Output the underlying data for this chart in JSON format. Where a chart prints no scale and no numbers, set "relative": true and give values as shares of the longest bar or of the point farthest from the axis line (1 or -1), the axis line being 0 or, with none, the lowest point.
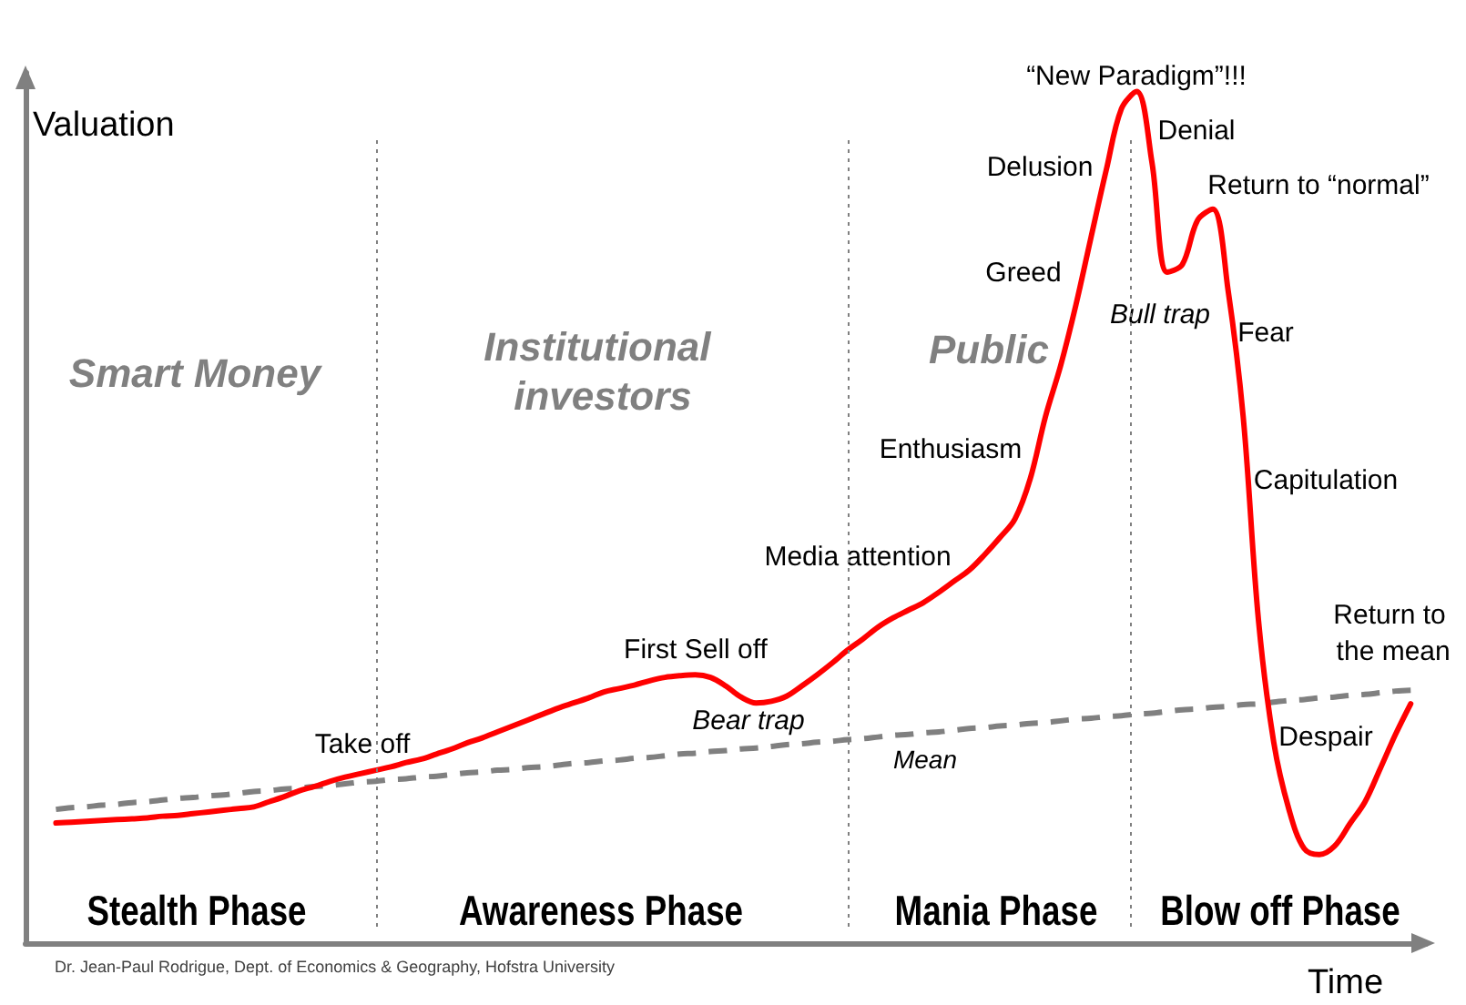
{
  "chart_data": {
    "type": "line",
    "relative": true,
    "xlabel": "Time",
    "ylabel": "Valuation",
    "marker": "none",
    "grid": false,
    "categories": [
      null,
      null,
      null,
      null,
      null,
      null,
      null,
      null,
      null,
      null,
      null,
      null,
      null,
      null,
      null,
      null,
      null,
      null,
      null,
      null,
      null,
      null,
      null,
      null,
      null,
      null,
      null,
      null,
      null,
      null,
      null,
      null,
      null,
      null,
      null,
      null,
      null,
      null,
      null,
      null,
      null,
      null,
      null,
      null,
      null,
      null,
      null,
      null,
      null,
      null,
      null,
      null,
      null,
      null,
      null,
      null,
      null,
      null,
      null,
      null,
      null,
      null,
      null,
      null,
      null,
      null,
      null,
      null,
      null,
      null,
      null,
      null,
      null,
      null,
      null,
      null,
      null,
      null,
      null,
      null,
      null,
      null,
      null,
      null,
      null,
      null,
      null,
      null,
      null,
      null,
      null,
      null,
      null
    ],
    "series": [
      {
        "color": "#ff0000",
        "values": [
          null,
          null,
          0.141,
          0.142,
          0.143,
          0.144,
          0.145,
          0.146,
          0.147,
          0.149,
          0.15,
          0.152,
          0.154,
          0.156,
          0.158,
          0.16,
          0.166,
          0.172,
          0.179,
          0.184,
          0.19,
          0.195,
          0.199,
          0.203,
          0.207,
          0.212,
          0.216,
          0.222,
          0.228,
          0.235,
          0.241,
          0.248,
          0.255,
          0.262,
          0.269,
          0.276,
          0.282,
          0.288,
          0.295,
          0.299,
          0.303,
          0.308,
          0.312,
          0.314,
          0.315,
          0.312,
          0.302,
          0.289,
          0.282,
          0.284,
          0.29,
          0.302,
          0.315,
          0.329,
          0.344,
          0.357,
          0.371,
          0.382,
          0.391,
          0.4,
          0.412,
          0.425,
          0.438,
          0.456,
          0.476,
          0.498,
          0.545,
          0.618,
          0.678,
          0.749,
          0.829,
          0.908,
          0.98,
          1,
          0.917,
          0.788,
          0.797,
          0.849,
          0.862,
          0.767,
          0.617,
          0.379,
          0.236,
          0.157,
          0.111,
          0.104,
          0.114,
          0.14,
          0.166,
          0.205,
          0.245,
          0.281,
          null
        ]
      },
      {
        "name": "Mean",
        "color": "#808080",
        "line_style": "dashed",
        "values": [
          null,
          null,
          0.157,
          0.159,
          0.16,
          0.162,
          0.163,
          0.165,
          0.166,
          0.168,
          0.17,
          0.171,
          0.173,
          0.174,
          0.176,
          0.178,
          0.179,
          0.181,
          0.182,
          0.184,
          0.185,
          0.187,
          0.189,
          0.19,
          0.192,
          0.193,
          0.195,
          0.196,
          0.198,
          0.2,
          0.201,
          0.203,
          0.204,
          0.206,
          0.207,
          0.209,
          0.211,
          0.212,
          0.214,
          0.215,
          0.217,
          0.218,
          0.22,
          0.222,
          0.223,
          0.225,
          0.226,
          0.228,
          0.229,
          0.231,
          0.233,
          0.234,
          0.236,
          0.237,
          0.239,
          0.24,
          0.242,
          0.244,
          0.245,
          0.247,
          0.248,
          0.25,
          0.252,
          0.253,
          0.255,
          0.256,
          0.258,
          0.259,
          0.261,
          0.263,
          0.264,
          0.266,
          0.267,
          0.269,
          0.27,
          0.272,
          0.274,
          0.275,
          0.277,
          0.278,
          0.28,
          0.281,
          0.283,
          0.285,
          0.286,
          0.288,
          0.289,
          0.291,
          0.292,
          0.294,
          0.296,
          0.297,
          null
        ]
      }
    ],
    "annotations": [
      "Smart Money",
      "Institutional investors",
      "Public",
      "Stealth Phase",
      "Awareness Phase",
      "Mania Phase",
      "Blow off Phase",
      "Take off",
      "First Sell off",
      "Bear trap",
      "Media attention",
      "Enthusiasm",
      "Greed",
      "Delusion",
      "“New Paradigm”!!!",
      "Denial",
      "Return to “normal”",
      "Bull trap",
      "Fear",
      "Capitulation",
      "Return to the mean",
      "Despair",
      "Dr. Jean-Paul Rodrigue, Dept. of Economics & Geography, Hofstra University"
    ]
  }
}
